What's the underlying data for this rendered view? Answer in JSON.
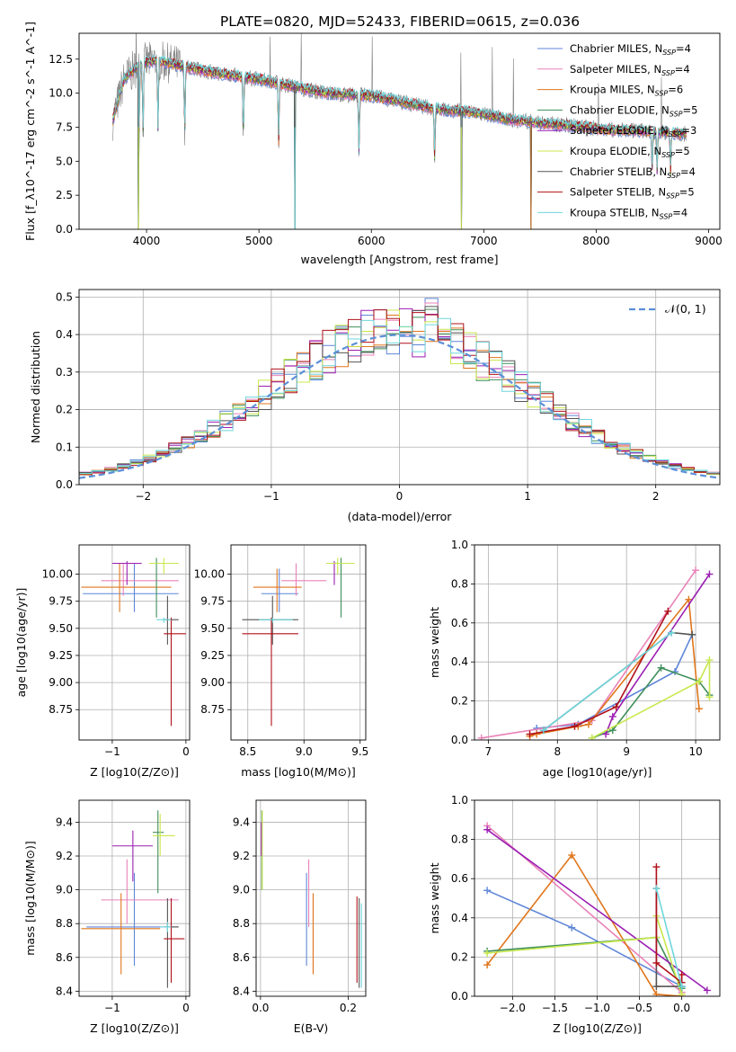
{
  "title": "PLATE=0820, MJD=52433, FIBERID=0615, z=0.036",
  "colors": {
    "Chabrier MILES": "#5f86d8",
    "Salpeter MILES": "#e982b8",
    "Kroupa MILES": "#e0761c",
    "Chabrier ELODIE": "#3f8f5a",
    "Salpeter ELODIE": "#9b1fb2",
    "Kroupa ELODIE": "#c8e84c",
    "Chabrier STELIB": "#555555",
    "Salpeter STELIB": "#b0101a",
    "Kroupa STELIB": "#6ed7dc",
    "data": "#808080",
    "gaussian": "#5b8fd8"
  },
  "legend": [
    {
      "label": "Chabrier MILES, N",
      "sub": "SSP",
      "eq": "=4"
    },
    {
      "label": "Salpeter MILES, N",
      "sub": "SSP",
      "eq": "=4"
    },
    {
      "label": "Kroupa MILES, N",
      "sub": "SSP",
      "eq": "=6"
    },
    {
      "label": "Chabrier ELODIE, N",
      "sub": "SSP",
      "eq": "=5"
    },
    {
      "label": "Salpeter ELODIE, N",
      "sub": "SSP",
      "eq": "=3"
    },
    {
      "label": "Kroupa ELODIE, N",
      "sub": "SSP",
      "eq": "=5"
    },
    {
      "label": "Chabrier STELIB, N",
      "sub": "SSP",
      "eq": "=4"
    },
    {
      "label": "Salpeter STELIB, N",
      "sub": "SSP",
      "eq": "=5"
    },
    {
      "label": "Kroupa STELIB, N",
      "sub": "SSP",
      "eq": "=4"
    }
  ],
  "chart_data": [
    {
      "type": "line",
      "name": "spectrum",
      "xlabel": "wavelength [Angstrom, rest frame]",
      "ylabel": "Flux [f_λ10^-17 erg cm^-2 s^-1 A^-1]",
      "xlim": [
        3400,
        9100
      ],
      "ylim": [
        0,
        14.4
      ],
      "xticks": [
        4000,
        5000,
        6000,
        7000,
        8000,
        9000
      ],
      "yticks": [
        0.0,
        2.5,
        5.0,
        7.5,
        10.0,
        12.5
      ],
      "grid": false,
      "legend_position": "right",
      "continuum": {
        "x": [
          3700,
          3800,
          3950,
          4100,
          4300,
          4600,
          5000,
          5300,
          5600,
          6000,
          6300,
          6600,
          6900,
          7200,
          7500,
          7800,
          8100,
          8400,
          8800
        ],
        "y": [
          8.0,
          11.0,
          12.2,
          12.4,
          12.0,
          11.5,
          11.0,
          10.5,
          10.0,
          9.8,
          9.3,
          8.8,
          8.6,
          8.1,
          7.8,
          7.6,
          7.3,
          7.2,
          7.0
        ]
      },
      "absorption_lines": [
        3934,
        3969,
        4102,
        4340,
        4861,
        5175,
        5890,
        6563,
        8498,
        8542,
        8662
      ],
      "model_dropouts": [
        {
          "x": 3930,
          "y_min": 0
        },
        {
          "x": 5320,
          "y_min": 0
        },
        {
          "x": 6800,
          "y_min": 0
        },
        {
          "x": 7420,
          "y_min": 0
        }
      ]
    },
    {
      "type": "line",
      "name": "residual_histogram",
      "xlabel": "(data-model)/error",
      "ylabel": "Normed distribution",
      "xlim": [
        -2.5,
        2.5
      ],
      "ylim": [
        0,
        0.52
      ],
      "xticks": [
        -2,
        -1,
        0,
        1,
        2
      ],
      "yticks": [
        0.0,
        0.1,
        0.2,
        0.3,
        0.4,
        0.5
      ],
      "grid": true,
      "legend_position": "top-right",
      "gaussian_label": "𝒩(0, 1)",
      "bin_width": 0.1
    },
    {
      "type": "scatter",
      "name": "age_vs_Z",
      "xlabel": "Z [log10(Z/Z⊙)]",
      "ylabel": "age [log10(age/yr)]",
      "xlim": [
        -1.45,
        0.05
      ],
      "ylim": [
        8.47,
        10.27
      ],
      "xticks": [
        -1,
        0
      ],
      "yticks": [
        8.75,
        9.0,
        9.25,
        9.5,
        9.75,
        10.0
      ],
      "grid": true,
      "points": [
        {
          "s": "Chabrier MILES",
          "x": -0.7,
          "xe": [
            -1.4,
            -0.1
          ],
          "y": 9.82,
          "ye": [
            9.65,
            10.1
          ]
        },
        {
          "s": "Salpeter MILES",
          "x": -0.85,
          "xe": [
            -1.15,
            -0.1
          ],
          "y": 9.94,
          "ye": [
            9.8,
            10.1
          ]
        },
        {
          "s": "Kroupa MILES",
          "x": -0.9,
          "xe": [
            -1.42,
            -0.2
          ],
          "y": 9.88,
          "ye": [
            9.65,
            10.1
          ]
        },
        {
          "s": "Chabrier ELODIE",
          "x": -0.4,
          "xe": [
            -0.42,
            -0.36
          ],
          "y": 10.1,
          "ye": [
            9.6,
            10.15
          ]
        },
        {
          "s": "Salpeter ELODIE",
          "x": -0.8,
          "xe": [
            -1.0,
            -0.6
          ],
          "y": 10.1,
          "ye": [
            9.9,
            10.12
          ]
        },
        {
          "s": "Kroupa ELODIE",
          "x": -0.3,
          "xe": [
            -0.5,
            -0.1
          ],
          "y": 10.1,
          "ye": [
            10.0,
            10.15
          ]
        },
        {
          "s": "Chabrier STELIB",
          "x": -0.25,
          "xe": [
            -0.3,
            -0.1
          ],
          "y": 9.58,
          "ye": [
            9.35,
            9.8
          ]
        },
        {
          "s": "Salpeter STELIB",
          "x": -0.2,
          "xe": [
            -0.3,
            0.0
          ],
          "y": 9.45,
          "ye": [
            8.6,
            9.6
          ]
        },
        {
          "s": "Kroupa STELIB",
          "x": -0.3,
          "xe": [
            -0.4,
            -0.2
          ],
          "y": 9.58,
          "ye": [
            9.55,
            9.6
          ]
        }
      ]
    },
    {
      "type": "scatter",
      "name": "age_vs_mass",
      "xlabel": "mass [log10(M/M⊙)]",
      "ylabel": "",
      "xlim": [
        8.35,
        9.55
      ],
      "ylim": [
        8.47,
        10.27
      ],
      "xticks": [
        8.5,
        9.0,
        9.5
      ],
      "yticks": [
        8.75,
        9.0,
        9.25,
        9.5,
        9.75,
        10.0
      ],
      "grid": true,
      "points": [
        {
          "s": "Chabrier MILES",
          "x": 8.78,
          "xe": [
            8.62,
            8.95
          ],
          "y": 9.82,
          "ye": [
            9.65,
            10.05
          ]
        },
        {
          "s": "Salpeter MILES",
          "x": 8.93,
          "xe": [
            8.8,
            9.2
          ],
          "y": 9.94,
          "ye": [
            9.8,
            10.1
          ]
        },
        {
          "s": "Kroupa MILES",
          "x": 8.76,
          "xe": [
            8.55,
            8.98
          ],
          "y": 9.88,
          "ye": [
            9.65,
            10.05
          ]
        },
        {
          "s": "Chabrier ELODIE",
          "x": 9.33,
          "xe": [
            9.2,
            9.45
          ],
          "y": 10.1,
          "ye": [
            9.6,
            10.15
          ]
        },
        {
          "s": "Salpeter ELODIE",
          "x": 9.27,
          "xe": [
            9.25,
            9.29
          ],
          "y": 10.1,
          "ye": [
            9.9,
            10.12
          ]
        },
        {
          "s": "Kroupa ELODIE",
          "x": 9.3,
          "xe": [
            9.2,
            9.45
          ],
          "y": 10.1,
          "ye": [
            10.0,
            10.15
          ]
        },
        {
          "s": "Chabrier STELIB",
          "x": 8.72,
          "xe": [
            8.45,
            8.95
          ],
          "y": 9.58,
          "ye": [
            9.35,
            9.8
          ]
        },
        {
          "s": "Salpeter STELIB",
          "x": 8.71,
          "xe": [
            8.45,
            8.95
          ],
          "y": 9.45,
          "ye": [
            8.6,
            9.6
          ]
        },
        {
          "s": "Kroupa STELIB",
          "x": 8.72,
          "xe": [
            8.6,
            8.9
          ],
          "y": 9.58,
          "ye": [
            9.55,
            9.6
          ]
        }
      ]
    },
    {
      "type": "line",
      "name": "mass_weight_vs_age",
      "xlabel": "age [log10(age/yr)]",
      "ylabel": "mass weight",
      "xlim": [
        6.8,
        10.35
      ],
      "ylim": [
        0,
        1.0
      ],
      "xticks": [
        7,
        8,
        9,
        10
      ],
      "yticks": [
        0.0,
        0.2,
        0.4,
        0.6,
        0.8,
        1.0
      ],
      "grid": true,
      "series": [
        {
          "s": "Chabrier MILES",
          "x": [
            7.7,
            8.3,
            9.7,
            9.95
          ],
          "y": [
            0.06,
            0.08,
            0.35,
            0.54
          ]
        },
        {
          "s": "Salpeter MILES",
          "x": [
            6.9,
            8.5,
            10.0
          ],
          "y": [
            0.01,
            0.1,
            0.87
          ]
        },
        {
          "s": "Kroupa MILES",
          "x": [
            7.6,
            7.7,
            8.3,
            8.45,
            9.9,
            10.05
          ],
          "y": [
            0.02,
            0.03,
            0.07,
            0.08,
            0.72,
            0.16
          ]
        },
        {
          "s": "Chabrier ELODIE",
          "x": [
            8.5,
            8.8,
            9.5,
            10.05,
            10.2
          ],
          "y": [
            0.01,
            0.05,
            0.37,
            0.3,
            0.23
          ]
        },
        {
          "s": "Salpeter ELODIE",
          "x": [
            8.7,
            8.8,
            10.2
          ],
          "y": [
            0.03,
            0.12,
            0.85
          ]
        },
        {
          "s": "Kroupa ELODIE",
          "x": [
            8.5,
            10.05,
            10.2,
            10.2
          ],
          "y": [
            0.01,
            0.3,
            0.41,
            0.22
          ]
        },
        {
          "s": "Chabrier STELIB",
          "x": [
            7.8,
            9.65,
            9.95
          ],
          "y": [
            0.05,
            0.55,
            0.54
          ]
        },
        {
          "s": "Salpeter STELIB",
          "x": [
            7.6,
            8.25,
            8.85,
            9.6
          ],
          "y": [
            0.03,
            0.07,
            0.17,
            0.66
          ]
        },
        {
          "s": "Kroupa STELIB",
          "x": [
            7.8,
            9.65
          ],
          "y": [
            0.05,
            0.55
          ]
        }
      ]
    },
    {
      "type": "scatter",
      "name": "mass_vs_Z",
      "xlabel": "Z [log10(Z/Z⊙)]",
      "ylabel": "mass [log10(M/M⊙)]",
      "xlim": [
        -1.45,
        0.05
      ],
      "ylim": [
        8.37,
        9.53
      ],
      "xticks": [
        -1,
        0
      ],
      "yticks": [
        8.4,
        8.6,
        8.8,
        9.0,
        9.2,
        9.4
      ],
      "grid": true,
      "points": [
        {
          "s": "Chabrier MILES",
          "x": -0.7,
          "xe": [
            -1.35,
            -0.1
          ],
          "y": 8.78,
          "ye": [
            8.55,
            9.1
          ]
        },
        {
          "s": "Salpeter MILES",
          "x": -0.8,
          "xe": [
            -1.15,
            -0.1
          ],
          "y": 8.94,
          "ye": [
            8.8,
            9.18
          ]
        },
        {
          "s": "Kroupa MILES",
          "x": -0.88,
          "xe": [
            -1.42,
            -0.35
          ],
          "y": 8.77,
          "ye": [
            8.5,
            8.98
          ]
        },
        {
          "s": "Chabrier ELODIE",
          "x": -0.38,
          "xe": [
            -0.45,
            -0.3
          ],
          "y": 9.34,
          "ye": [
            8.98,
            9.47
          ]
        },
        {
          "s": "Salpeter ELODIE",
          "x": -0.72,
          "xe": [
            -1.0,
            -0.45
          ],
          "y": 9.26,
          "ye": [
            9.05,
            9.35
          ]
        },
        {
          "s": "Kroupa ELODIE",
          "x": -0.35,
          "xe": [
            -0.45,
            -0.15
          ],
          "y": 9.32,
          "ye": [
            9.2,
            9.45
          ]
        },
        {
          "s": "Chabrier STELIB",
          "x": -0.25,
          "xe": [
            -0.3,
            -0.1
          ],
          "y": 8.78,
          "ye": [
            8.42,
            8.95
          ]
        },
        {
          "s": "Salpeter STELIB",
          "x": -0.2,
          "xe": [
            -0.3,
            -0.02
          ],
          "y": 8.71,
          "ye": [
            8.45,
            8.95
          ]
        },
        {
          "s": "Kroupa STELIB",
          "x": -0.25,
          "xe": [
            -0.35,
            -0.2
          ],
          "y": 8.78,
          "ye": [
            8.75,
            8.81
          ]
        }
      ]
    },
    {
      "type": "scatter",
      "name": "mass_vs_EBV",
      "xlabel": "E(B-V)",
      "ylabel": "",
      "xlim": [
        -0.01,
        0.24
      ],
      "ylim": [
        8.37,
        9.53
      ],
      "xticks": [
        0.0,
        0.2
      ],
      "yticks": [
        8.4,
        8.6,
        8.8,
        9.0,
        9.2,
        9.4
      ],
      "grid": true,
      "points": [
        {
          "s": "Chabrier MILES",
          "x": 0.105,
          "y": 8.9,
          "ye": [
            8.55,
            9.1
          ]
        },
        {
          "s": "Salpeter MILES",
          "x": 0.11,
          "y": 8.95,
          "ye": [
            8.78,
            9.18
          ]
        },
        {
          "s": "Kroupa MILES",
          "x": 0.12,
          "y": 8.75,
          "ye": [
            8.5,
            8.98
          ]
        },
        {
          "s": "Chabrier ELODIE",
          "x": 0.003,
          "y": 9.3,
          "ye": [
            9.0,
            9.47
          ]
        },
        {
          "s": "Salpeter ELODIE",
          "x": 0.002,
          "y": 9.3,
          "ye": [
            9.2,
            9.4
          ]
        },
        {
          "s": "Kroupa ELODIE",
          "x": 0.004,
          "y": 9.25,
          "ye": [
            9.0,
            9.47
          ]
        },
        {
          "s": "Chabrier STELIB",
          "x": 0.225,
          "y": 8.7,
          "ye": [
            8.42,
            8.95
          ]
        },
        {
          "s": "Salpeter STELIB",
          "x": 0.22,
          "y": 8.72,
          "ye": [
            8.45,
            8.96
          ]
        },
        {
          "s": "Kroupa STELIB",
          "x": 0.23,
          "y": 8.65,
          "ye": [
            8.42,
            8.92
          ]
        }
      ]
    },
    {
      "type": "line",
      "name": "mass_weight_vs_Z",
      "xlabel": "Z [log10(Z/Z⊙)]",
      "ylabel": "mass weight",
      "xlim": [
        -2.45,
        0.45
      ],
      "ylim": [
        0,
        1.0
      ],
      "xticks": [
        -2.0,
        -1.5,
        -1.0,
        -0.5,
        0.0
      ],
      "yticks": [
        0.0,
        0.2,
        0.4,
        0.6,
        0.8,
        1.0
      ],
      "grid": true,
      "series": [
        {
          "s": "Chabrier MILES",
          "x": [
            -2.3,
            -1.3,
            0.0
          ],
          "y": [
            0.54,
            0.35,
            0.05
          ]
        },
        {
          "s": "Salpeter MILES",
          "x": [
            -2.3,
            0.0
          ],
          "y": [
            0.87,
            0.02
          ]
        },
        {
          "s": "Kroupa MILES",
          "x": [
            -2.3,
            -1.3,
            -0.3,
            0.0
          ],
          "y": [
            0.16,
            0.72,
            0.01,
            0.0
          ]
        },
        {
          "s": "Chabrier ELODIE",
          "x": [
            -2.3,
            -0.3,
            0.0
          ],
          "y": [
            0.23,
            0.3,
            0.04
          ]
        },
        {
          "s": "Salpeter ELODIE",
          "x": [
            -2.3,
            0.3
          ],
          "y": [
            0.85,
            0.03
          ]
        },
        {
          "s": "Kroupa ELODIE",
          "x": [
            -2.3,
            -0.3,
            -0.3,
            0.0
          ],
          "y": [
            0.22,
            0.3,
            0.41,
            0.01
          ]
        },
        {
          "s": "Chabrier STELIB",
          "x": [
            -0.3,
            -0.3,
            0.0
          ],
          "y": [
            0.55,
            0.05,
            0.05
          ]
        },
        {
          "s": "Salpeter STELIB",
          "x": [
            -0.3,
            -0.3,
            0.0,
            0.0
          ],
          "y": [
            0.66,
            0.17,
            0.07,
            0.11
          ]
        },
        {
          "s": "Kroupa STELIB",
          "x": [
            -0.3,
            0.0
          ],
          "y": [
            0.55,
            0.05
          ]
        }
      ]
    }
  ]
}
